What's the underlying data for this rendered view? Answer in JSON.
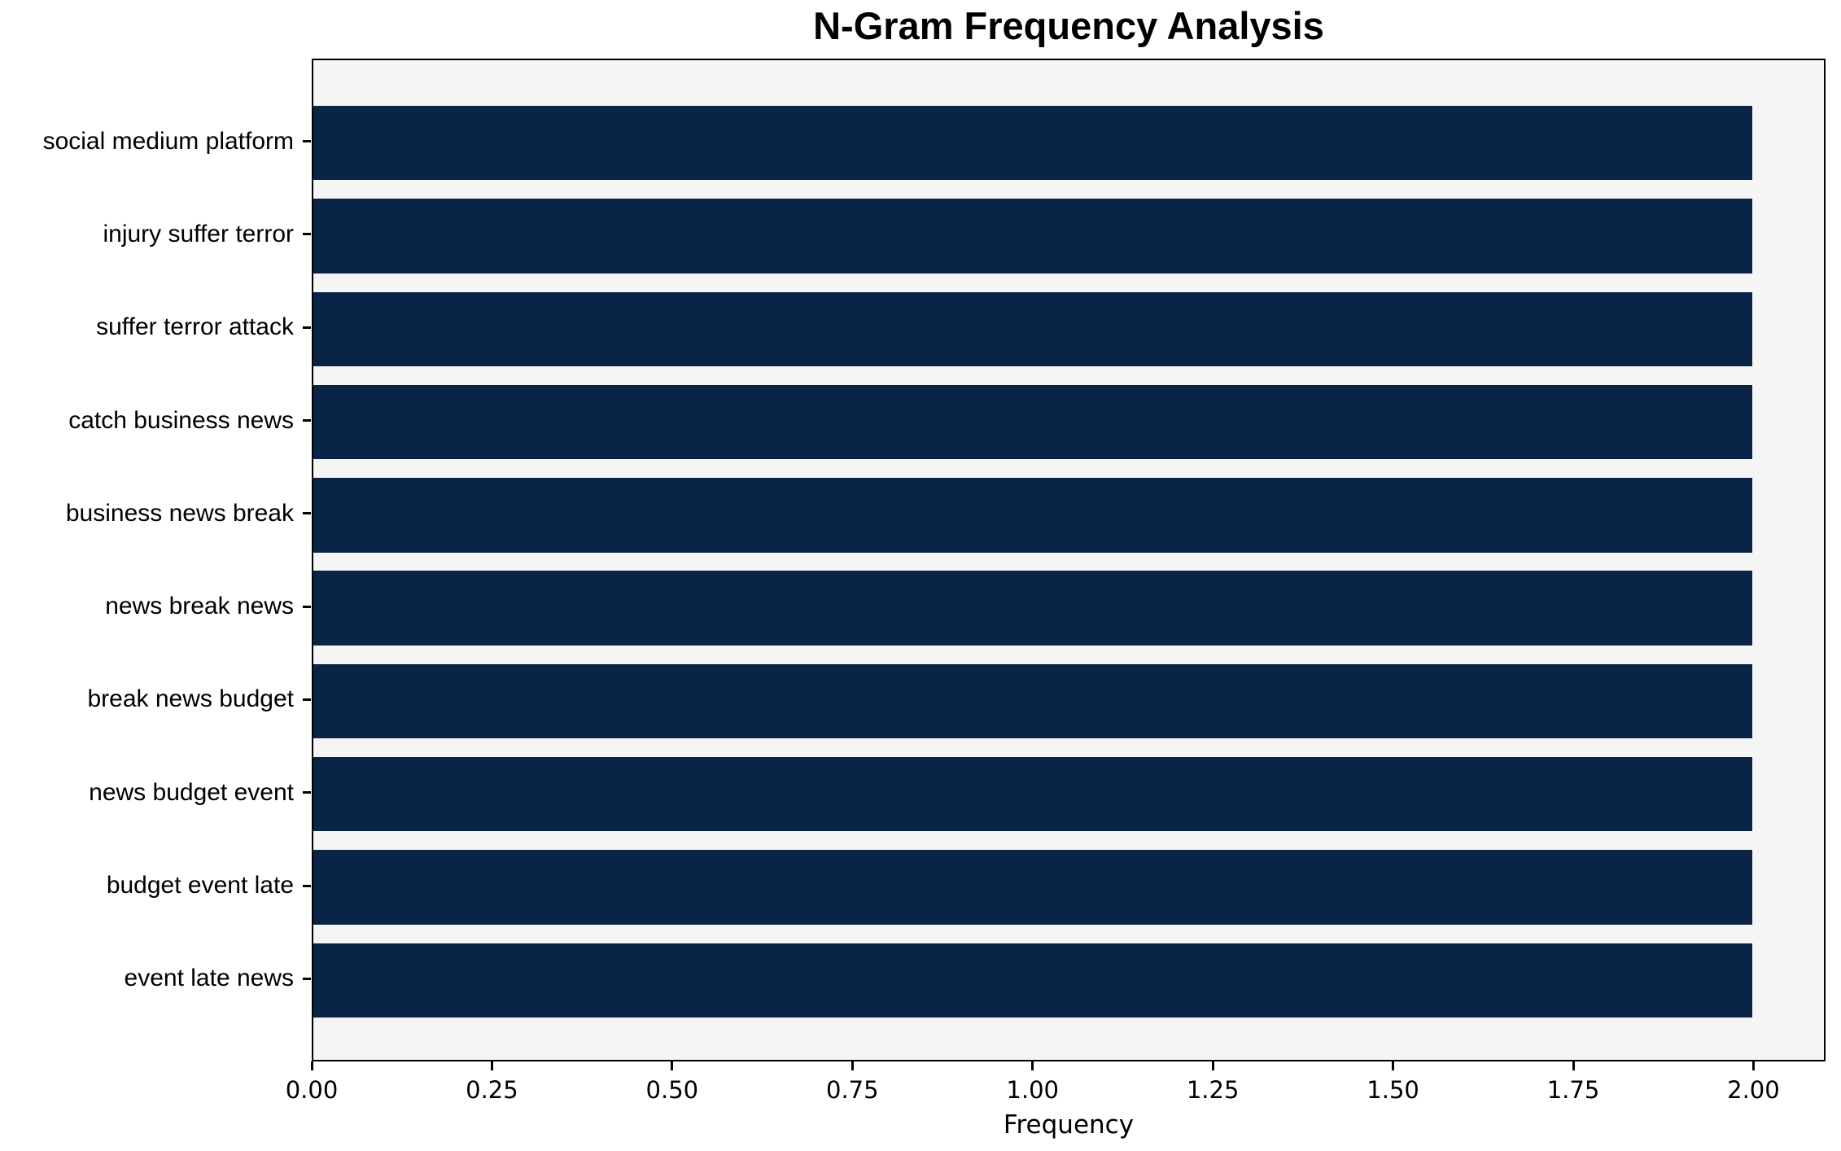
{
  "chart_data": {
    "type": "bar",
    "orientation": "horizontal",
    "title": "N-Gram Frequency Analysis",
    "xlabel": "Frequency",
    "ylabel": "",
    "categories": [
      "social medium platform",
      "injury suffer terror",
      "suffer terror attack",
      "catch business news",
      "business news break",
      "news break news",
      "break news budget",
      "news budget event",
      "budget event late",
      "event late news"
    ],
    "values": [
      2,
      2,
      2,
      2,
      2,
      2,
      2,
      2,
      2,
      2
    ],
    "xlim": [
      0,
      2.1
    ],
    "xticks": [
      0,
      0.25,
      0.5,
      0.75,
      1.0,
      1.25,
      1.5,
      1.75,
      2.0
    ],
    "xtick_labels": [
      "0.00",
      "0.25",
      "0.50",
      "0.75",
      "1.00",
      "1.25",
      "1.50",
      "1.75",
      "2.00"
    ],
    "grid": false,
    "legend": "none",
    "colors": {
      "bar": "#0a2447",
      "plot_background": "#f5f5f5",
      "figure_background": "#ffffff",
      "spine": "#000000",
      "text": "#000000"
    }
  }
}
